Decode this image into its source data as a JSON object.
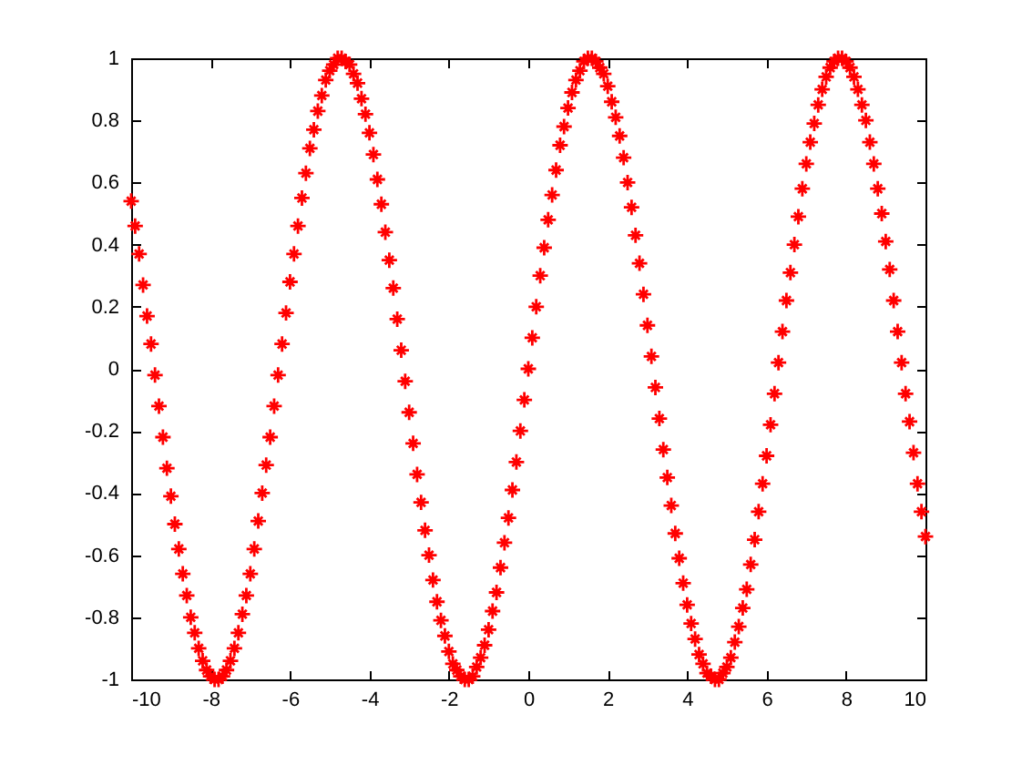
{
  "chart_data": {
    "type": "scatter",
    "marker": "cross",
    "color": "#ff0000",
    "grid": false,
    "xlim": [
      -10,
      10
    ],
    "ylim": [
      -1,
      1
    ],
    "xticks": [
      -10,
      -8,
      -6,
      -4,
      -2,
      0,
      2,
      4,
      6,
      8,
      10
    ],
    "yticks": [
      -1,
      -0.8,
      -0.6,
      -0.4,
      -0.2,
      0,
      0.2,
      0.4,
      0.6,
      0.8,
      1
    ],
    "x": [
      -10,
      -9.9,
      -9.8,
      -9.7,
      -9.6,
      -9.5,
      -9.4,
      -9.3,
      -9.2,
      -9.1,
      -9,
      -8.9,
      -8.8,
      -8.7,
      -8.6,
      -8.5,
      -8.4,
      -8.3,
      -8.2,
      -8.1,
      -8,
      -7.9,
      -7.8,
      -7.7,
      -7.6,
      -7.5,
      -7.4,
      -7.3,
      -7.2,
      -7.1,
      -7,
      -6.9,
      -6.8,
      -6.7,
      -6.6,
      -6.5,
      -6.4,
      -6.3,
      -6.2,
      -6.1,
      -6,
      -5.9,
      -5.8,
      -5.7,
      -5.6,
      -5.5,
      -5.4,
      -5.3,
      -5.2,
      -5.1,
      -5,
      -4.9,
      -4.8,
      -4.7,
      -4.6,
      -4.5,
      -4.4,
      -4.3,
      -4.2,
      -4.1,
      -4,
      -3.9,
      -3.8,
      -3.7,
      -3.6,
      -3.5,
      -3.4,
      -3.3,
      -3.2,
      -3.1,
      -3,
      -2.9,
      -2.8,
      -2.7,
      -2.6,
      -2.5,
      -2.4,
      -2.3,
      -2.2,
      -2.1,
      -2,
      -1.9,
      -1.8,
      -1.7,
      -1.6,
      -1.5,
      -1.4,
      -1.3,
      -1.2,
      -1.1,
      -1,
      -0.9,
      -0.8,
      -0.7,
      -0.6,
      -0.5,
      -0.4,
      -0.3,
      -0.2,
      -0.1,
      0,
      0.1,
      0.2,
      0.3,
      0.4,
      0.5,
      0.6,
      0.7,
      0.8,
      0.9,
      1,
      1.1,
      1.2,
      1.3,
      1.4,
      1.5,
      1.6,
      1.7,
      1.8,
      1.9,
      2,
      2.1,
      2.2,
      2.3,
      2.4,
      2.5,
      2.6,
      2.7,
      2.8,
      2.9,
      3,
      3.1,
      3.2,
      3.3,
      3.4,
      3.5,
      3.6,
      3.7,
      3.8,
      3.9,
      4,
      4.1,
      4.2,
      4.3,
      4.4,
      4.5,
      4.6,
      4.7,
      4.8,
      4.9,
      5,
      5.1,
      5.2,
      5.3,
      5.4,
      5.5,
      5.6,
      5.7,
      5.8,
      5.9,
      6,
      6.1,
      6.2,
      6.3,
      6.4,
      6.5,
      6.6,
      6.7,
      6.8,
      6.9,
      7,
      7.1,
      7.2,
      7.3,
      7.4,
      7.5,
      7.6,
      7.7,
      7.8,
      7.9,
      8,
      8.1,
      8.2,
      8.3,
      8.4,
      8.5,
      8.6,
      8.7,
      8.8,
      8.9,
      9,
      9.1,
      9.2,
      9.3,
      9.4,
      9.5,
      9.6,
      9.7,
      9.8,
      9.9,
      10
    ],
    "values": [
      0.54,
      0.46,
      0.37,
      0.27,
      0.17,
      0.08,
      -0.02,
      -0.12,
      -0.22,
      -0.32,
      -0.41,
      -0.5,
      -0.58,
      -0.66,
      -0.73,
      -0.8,
      -0.85,
      -0.9,
      -0.94,
      -0.97,
      -0.99,
      -1,
      -1,
      -0.99,
      -0.97,
      -0.94,
      -0.9,
      -0.85,
      -0.79,
      -0.73,
      -0.66,
      -0.58,
      -0.49,
      -0.4,
      -0.31,
      -0.22,
      -0.12,
      -0.02,
      0.08,
      0.18,
      0.28,
      0.37,
      0.46,
      0.55,
      0.63,
      0.71,
      0.77,
      0.83,
      0.88,
      0.93,
      0.96,
      0.98,
      1,
      1,
      0.99,
      0.98,
      0.95,
      0.92,
      0.87,
      0.82,
      0.76,
      0.69,
      0.61,
      0.53,
      0.44,
      0.35,
      0.26,
      0.16,
      0.06,
      -0.04,
      -0.14,
      -0.24,
      -0.34,
      -0.43,
      -0.52,
      -0.6,
      -0.68,
      -0.75,
      -0.81,
      -0.86,
      -0.91,
      -0.95,
      -0.97,
      -0.99,
      -1,
      -1,
      -0.99,
      -0.96,
      -0.93,
      -0.89,
      -0.84,
      -0.78,
      -0.72,
      -0.64,
      -0.56,
      -0.48,
      -0.39,
      -0.3,
      -0.2,
      -0.1,
      0,
      0.1,
      0.2,
      0.3,
      0.39,
      0.48,
      0.56,
      0.64,
      0.72,
      0.78,
      0.84,
      0.89,
      0.93,
      0.96,
      0.99,
      1,
      1,
      0.99,
      0.97,
      0.95,
      0.91,
      0.86,
      0.81,
      0.75,
      0.68,
      0.6,
      0.52,
      0.43,
      0.34,
      0.24,
      0.14,
      0.04,
      -0.06,
      -0.16,
      -0.26,
      -0.35,
      -0.44,
      -0.53,
      -0.61,
      -0.69,
      -0.76,
      -0.82,
      -0.87,
      -0.92,
      -0.95,
      -0.98,
      -0.99,
      -1,
      -1,
      -0.98,
      -0.96,
      -0.93,
      -0.88,
      -0.83,
      -0.77,
      -0.71,
      -0.63,
      -0.55,
      -0.46,
      -0.37,
      -0.28,
      -0.18,
      -0.08,
      0.02,
      0.12,
      0.22,
      0.31,
      0.4,
      0.49,
      0.58,
      0.66,
      0.73,
      0.79,
      0.85,
      0.9,
      0.94,
      0.97,
      0.99,
      1,
      1,
      0.99,
      0.97,
      0.94,
      0.9,
      0.85,
      0.8,
      0.73,
      0.66,
      0.58,
      0.5,
      0.41,
      0.32,
      0.22,
      0.12,
      0.02,
      -0.08,
      -0.17,
      -0.27,
      -0.37,
      -0.46,
      -0.54
    ]
  }
}
